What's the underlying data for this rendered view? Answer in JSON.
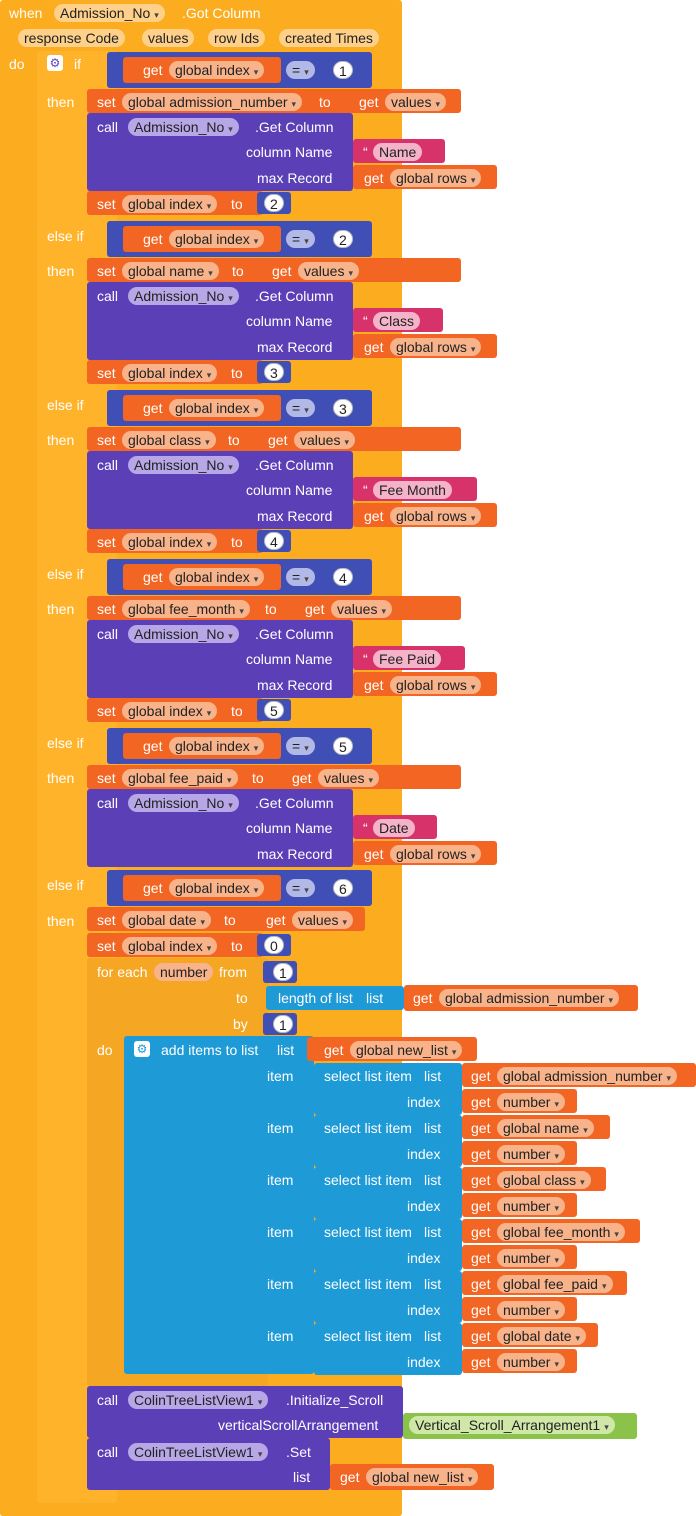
{
  "event": {
    "when": "when",
    "component": "Admission_No",
    "event": ".Got Column",
    "params": [
      "response Code",
      "values",
      "row Ids",
      "created Times"
    ],
    "do": "do"
  },
  "kw": {
    "if": "if",
    "then": "then",
    "elseif": "else if",
    "set": "set",
    "to": "to",
    "get": "get",
    "call": "call",
    "column_name": "column Name",
    "max_record": "max Record",
    "eq": "=",
    "for_each": "for each",
    "from": "from",
    "by": "by",
    "do": "do",
    "length_of_list": "length of list",
    "list": "list",
    "add_items": "add items to list",
    "item": "item",
    "select_list_item": "select list item",
    "index": "index",
    "quote_open": "“",
    "quote_close": "”"
  },
  "vars": {
    "global_index": "global index",
    "global_rows": "global rows",
    "values": "values",
    "global_admission_number": "global admission_number",
    "global_name": "global name",
    "global_class": "global class",
    "global_fee_month": "global fee_month",
    "global_fee_paid": "global fee_paid",
    "global_date": "global date",
    "global_new_list": "global new_list",
    "number": "number"
  },
  "call": {
    "component": "Admission_No",
    "method": ".Get Column"
  },
  "branches": [
    {
      "cmp": "1",
      "setvar": "global admission_number",
      "column": "Name",
      "next": "2"
    },
    {
      "cmp": "2",
      "setvar": "global name",
      "column": "Class",
      "next": "3"
    },
    {
      "cmp": "3",
      "setvar": "global class",
      "column": "Fee Month",
      "next": "4"
    },
    {
      "cmp": "4",
      "setvar": "global fee_month",
      "column": "Fee Paid",
      "next": "5"
    },
    {
      "cmp": "5",
      "setvar": "global fee_paid",
      "column": "Date"
    }
  ],
  "last_branch": {
    "cmp": "6",
    "setvar": "global date",
    "index_value": "0"
  },
  "loop": {
    "var": "number",
    "from": "1",
    "by": "1"
  },
  "add_items_vars": [
    "global admission_number",
    "global name",
    "global class",
    "global fee_month",
    "global fee_paid",
    "global date"
  ],
  "tail": {
    "component": "ColinTreeListView1",
    "method1": ".Initialize_Scroll",
    "param1": "verticalScrollArrangement",
    "arg1": "Vertical_Scroll_Arrangement1",
    "method2": ".Set",
    "param2": "list"
  }
}
